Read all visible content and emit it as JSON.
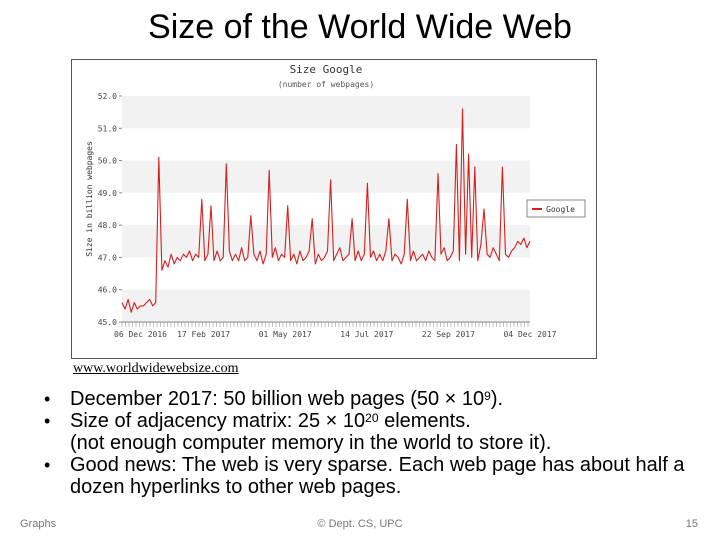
{
  "slide": {
    "title": "Size of the World Wide Web",
    "source": "www.worldwidewebsize.com",
    "footer_left": "Graphs",
    "footer_center": "© Dept. CS, UPC",
    "footer_right": "15"
  },
  "bullets": [
    {
      "parts": [
        "December 2017: 50 billion web pages (50 × 10",
        "9",
        ")."
      ]
    },
    {
      "parts": [
        "Size of adjacency matrix: 25 × 10",
        "20",
        " elements."
      ],
      "line2": "(not enough computer memory in the world to store it)."
    },
    {
      "parts": [
        "Good news: The web is very sparse. Each web page has about half a dozen hyperlinks to other web pages."
      ]
    }
  ],
  "chart_data": {
    "type": "line",
    "title": "Size Google",
    "subtitle": "(number of webpages)",
    "ylabel": "Size in billion webpages",
    "ylim": [
      45.0,
      52.0
    ],
    "yticks": [
      "52.0",
      "51.0",
      "50.0",
      "49.0",
      "48.0",
      "47.0",
      "46.0",
      "45.0"
    ],
    "xticks": [
      "06 Dec 2016",
      "17 Feb 2017",
      "01 May 2017",
      "14 Jul 2017",
      "22 Sep 2017",
      "04 Dec 2017"
    ],
    "legend_position": "right",
    "series": [
      {
        "name": "Google",
        "color": "#d42020",
        "values": [
          45.6,
          45.4,
          45.7,
          45.3,
          45.6,
          45.4,
          45.5,
          45.5,
          45.6,
          45.7,
          45.5,
          45.6,
          50.1,
          46.6,
          46.9,
          46.7,
          47.1,
          46.8,
          47.0,
          46.9,
          47.1,
          47.0,
          47.2,
          46.9,
          47.1,
          47.0,
          48.8,
          46.9,
          47.1,
          48.6,
          46.9,
          47.2,
          46.9,
          47.0,
          49.9,
          47.2,
          46.9,
          47.1,
          46.9,
          47.3,
          46.9,
          47.0,
          48.3,
          47.1,
          46.9,
          47.2,
          46.8,
          47.1,
          49.7,
          47.0,
          47.3,
          46.9,
          47.1,
          47.0,
          48.6,
          46.9,
          47.1,
          46.8,
          47.2,
          46.9,
          47.0,
          47.2,
          48.2,
          46.8,
          47.1,
          46.9,
          47.0,
          47.2,
          49.4,
          46.9,
          47.1,
          47.3,
          46.9,
          47.0,
          47.1,
          48.2,
          46.9,
          47.2,
          46.9,
          47.1,
          49.3,
          47.0,
          47.2,
          46.9,
          47.1,
          46.9,
          47.2,
          48.2,
          46.9,
          47.1,
          47.0,
          46.8,
          47.1,
          48.8,
          46.9,
          47.2,
          46.9,
          47.0,
          47.1,
          46.9,
          47.2,
          47.0,
          46.9,
          49.6,
          47.1,
          47.3,
          46.9,
          47.0,
          47.2,
          50.5,
          46.9,
          51.6,
          47.1,
          50.2,
          47.0,
          49.8,
          46.9,
          47.4,
          48.5,
          47.1,
          47.0,
          47.3,
          47.1,
          46.9,
          49.8,
          47.1,
          47.0,
          47.2,
          47.3,
          47.5,
          47.4,
          47.6,
          47.3,
          47.5
        ]
      }
    ]
  }
}
